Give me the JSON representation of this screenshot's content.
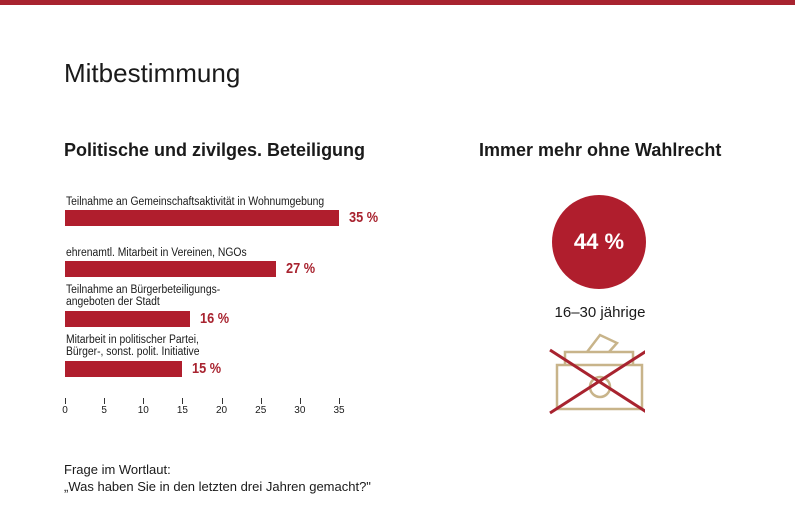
{
  "title": "Mitbestimmung",
  "chart_data": [
    {
      "type": "bar",
      "orientation": "horizontal",
      "title": "Politische und zivilges. Beteiligung",
      "categories": [
        "Teilnahme an Gemeinschaftsaktivität in Wohnumgebung",
        "ehrenamtl. Mitarbeit in Vereinen, NGOs",
        "Teilnahme an Bürgerbeteiligungs-\nangeboten der Stadt",
        "Mitarbeit in politischer Partei,\nBürger-, sonst. polit. Initiative"
      ],
      "values": [
        35,
        27,
        16,
        15
      ],
      "data_labels": [
        "35 %",
        "27 %",
        "16 %",
        "15 %"
      ],
      "xlim": [
        0,
        35
      ],
      "xticks": [
        0,
        5,
        10,
        15,
        20,
        25,
        30,
        35
      ],
      "grid": false,
      "bar_color": "#b01e2d"
    },
    {
      "type": "pie",
      "title": "Immer mehr ohne Wahlrecht",
      "value_label": "44 %",
      "value": 44,
      "caption": "16–30 jährige",
      "icon": "crossed-out-ballot-box-icon",
      "circle_color": "#b01e2d"
    }
  ],
  "question": {
    "label": "Frage im Wortlaut:",
    "text": "„Was haben Sie in den letzten drei Jahren gemacht?\""
  }
}
